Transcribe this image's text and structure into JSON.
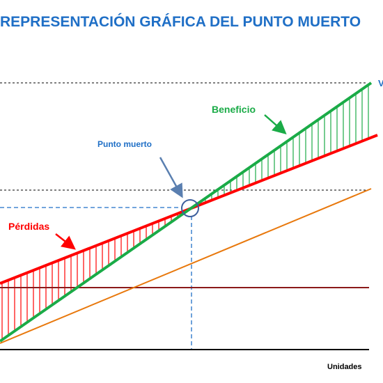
{
  "title": "REPRESENTACIÓN GRÁFICA DEL PUNTO MUERTO",
  "labels": {
    "beneficio": "Beneficio",
    "punto_muerto": "Punto muerto",
    "perdidas": "Pérdidas",
    "x_axis": "Unidades"
  },
  "colors": {
    "title": "#1f6fc6",
    "ingresos_line": "#1aab47",
    "costes_totales_line": "#ff0000",
    "costes_variables_line": "#e8780c",
    "costes_fijos_line": "#8b1a1a",
    "beneficio_label": "#1aab47",
    "perdidas_label": "#ff0000",
    "punto_muerto_label": "#1f6fc6",
    "guide_lines": "#1f6fc6"
  }
}
